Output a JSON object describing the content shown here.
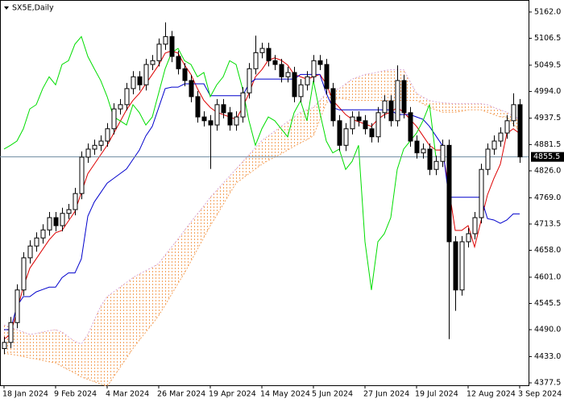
{
  "chart_data": {
    "type": "candlestick",
    "title": "SX5E,Daily",
    "categories": [
      "18 Jan 2024",
      null,
      null,
      null,
      null,
      null,
      null,
      null,
      "9 Feb 2024",
      null,
      null,
      null,
      null,
      null,
      null,
      null,
      "4 Mar 2024",
      null,
      null,
      null,
      null,
      null,
      null,
      null,
      "26 Mar 2024",
      null,
      null,
      null,
      null,
      null,
      null,
      null,
      "19 Apr 2024",
      null,
      null,
      null,
      null,
      null,
      null,
      null,
      "14 May 2024",
      null,
      null,
      null,
      null,
      null,
      null,
      null,
      "5 Jun 2024",
      null,
      null,
      null,
      null,
      null,
      null,
      null,
      "27 Jun 2024",
      null,
      null,
      null,
      null,
      null,
      null,
      null,
      "19 Jul 2024",
      null,
      null,
      null,
      null,
      null,
      null,
      null,
      "12 Aug 2024",
      null,
      null,
      null,
      null,
      null,
      null,
      null,
      "3 Sep 2024"
    ],
    "open": [
      4450,
      4463,
      4505,
      4574,
      4642,
      4667,
      4684,
      4701,
      4727,
      4710,
      4736,
      4744,
      4778,
      4855,
      4872,
      4880,
      4889,
      4915,
      4957,
      4966,
      5000,
      5025,
      5008,
      5051,
      5059,
      5094,
      5110,
      5068,
      5042,
      5017,
      4983,
      4940,
      4932,
      4923,
      4966,
      4949,
      4923,
      4940,
      4991,
      5042,
      5076,
      5085,
      5059,
      5051,
      5025,
      5034,
      4983,
      5008,
      5025,
      5059,
      5051,
      5000,
      4932,
      4880,
      4915,
      4940,
      4932,
      4915,
      4898,
      4949,
      4974,
      4932,
      5017,
      4949,
      4889,
      4864,
      4872,
      4829,
      4846,
      4880,
      4676,
      4574,
      4676,
      4693,
      4727,
      4829,
      4872,
      4889,
      4906,
      4932,
      4966
    ],
    "high": [
      4475,
      4517,
      4586,
      4654,
      4679,
      4696,
      4713,
      4739,
      4739,
      4748,
      4756,
      4790,
      4867,
      4884,
      4892,
      4901,
      4927,
      4969,
      4978,
      5012,
      5037,
      5037,
      5063,
      5071,
      5106,
      5140,
      5122,
      5080,
      5054,
      5029,
      4995,
      4952,
      4944,
      4978,
      4978,
      4961,
      4952,
      5003,
      5054,
      5112,
      5097,
      5097,
      5071,
      5063,
      5046,
      5046,
      5020,
      5037,
      5071,
      5071,
      5063,
      5012,
      4944,
      4927,
      4952,
      4952,
      4944,
      4927,
      4961,
      4986,
      4986,
      5049,
      5029,
      4961,
      4901,
      4884,
      4884,
      4858,
      4892,
      4892,
      4688,
      4688,
      4705,
      4739,
      4841,
      4884,
      4901,
      4918,
      4944,
      4990,
      4978
    ],
    "low": [
      4438,
      4451,
      4493,
      4562,
      4630,
      4655,
      4672,
      4689,
      4698,
      4698,
      4724,
      4732,
      4766,
      4843,
      4860,
      4868,
      4877,
      4903,
      4945,
      4954,
      4988,
      4996,
      4996,
      5039,
      5047,
      5082,
      5056,
      5030,
      5005,
      4971,
      4928,
      4920,
      4830,
      4911,
      4937,
      4911,
      4911,
      4928,
      4979,
      5030,
      5064,
      5047,
      5039,
      5013,
      5013,
      4971,
      4971,
      4996,
      5013,
      5039,
      4988,
      4920,
      4868,
      4868,
      4903,
      4920,
      4903,
      4886,
      4886,
      4937,
      4920,
      4920,
      4937,
      4877,
      4852,
      4852,
      4817,
      4817,
      4834,
      4470,
      4530,
      4562,
      4664,
      4681,
      4715,
      4817,
      4860,
      4877,
      4894,
      4920,
      4843
    ],
    "close": [
      4463,
      4505,
      4574,
      4642,
      4667,
      4684,
      4701,
      4727,
      4710,
      4736,
      4744,
      4778,
      4855,
      4872,
      4880,
      4889,
      4915,
      4957,
      4966,
      5000,
      5025,
      5008,
      5051,
      5059,
      5094,
      5110,
      5068,
      5042,
      5017,
      4983,
      4940,
      4932,
      4923,
      4966,
      4949,
      4923,
      4940,
      4991,
      5042,
      5076,
      5085,
      5059,
      5051,
      5025,
      5034,
      4983,
      5008,
      5025,
      5059,
      5051,
      5000,
      4932,
      4880,
      4915,
      4940,
      4932,
      4915,
      4898,
      4949,
      4974,
      4932,
      5017,
      4949,
      4889,
      4864,
      4872,
      4829,
      4846,
      4880,
      4676,
      4574,
      4676,
      4693,
      4727,
      4829,
      4872,
      4889,
      4906,
      4932,
      4966,
      4855.5
    ],
    "bull_color": "#ffffff",
    "bear_color": "#000000",
    "lines": [
      {
        "color": "#dd0000",
        "values": [
          4470,
          4480,
          4530,
          4580,
          4620,
          4640,
          4660,
          4680,
          4695,
          4700,
          4720,
          4740,
          4780,
          4820,
          4840,
          4860,
          4880,
          4905,
          4930,
          4955,
          4975,
          4990,
          5010,
          5030,
          5050,
          5075,
          5080,
          5075,
          5050,
          5030,
          5000,
          4975,
          4960,
          4950,
          4945,
          4940,
          4935,
          4960,
          4990,
          5025,
          5040,
          5060,
          5065,
          5060,
          5050,
          5030,
          5025,
          5020,
          5025,
          5030,
          5010,
          4975,
          4960,
          4945,
          4935,
          4930,
          4925,
          4920,
          4935,
          4945,
          4950,
          4960,
          4950,
          4935,
          4920,
          4900,
          4880,
          4870,
          4870,
          4790,
          4700,
          4700,
          4710,
          4665,
          4720,
          4775,
          4810,
          4840,
          4905,
          4915,
          4905
        ]
      },
      {
        "color": "#0000cc",
        "values": [
          4490,
          4490,
          4540,
          4560,
          4560,
          4570,
          4575,
          4580,
          4580,
          4600,
          4610,
          4610,
          4640,
          4730,
          4760,
          4780,
          4800,
          4810,
          4820,
          4830,
          4850,
          4870,
          4900,
          4920,
          4960,
          5000,
          5003,
          5003,
          5010,
          5010,
          5010,
          5010,
          4985,
          4985,
          4985,
          4985,
          4985,
          4985,
          5010,
          5020,
          5020,
          5020,
          5020,
          5020,
          5020,
          5020,
          5030,
          5030,
          5030,
          5030,
          4990,
          4960,
          4955,
          4955,
          4955,
          4955,
          4955,
          4955,
          4955,
          4955,
          4955,
          4945,
          4945,
          4945,
          4940,
          4935,
          4920,
          4900,
          4880,
          4770,
          4770,
          4770,
          4770,
          4770,
          4770,
          4725,
          4722,
          4715,
          4722,
          4735,
          4735
        ]
      },
      {
        "color": "#00dd00",
        "values": [
          4872,
          4880,
          4889,
          4915,
          4957,
          4966,
          5000,
          5025,
          5008,
          5051,
          5059,
          5094,
          5110,
          5068,
          5042,
          5017,
          4983,
          4940,
          4932,
          4923,
          4966,
          4949,
          4923,
          4940,
          4991,
          5042,
          5076,
          5085,
          5059,
          5051,
          5025,
          5034,
          4983,
          5008,
          5025,
          5059,
          5051,
          5000,
          4932,
          4880,
          4915,
          4940,
          4932,
          4915,
          4898,
          4949,
          4974,
          4932,
          5017,
          4949,
          4889,
          4864,
          4872,
          4829,
          4846,
          4880,
          4676,
          4574,
          4676,
          4693,
          4727,
          4829,
          4872,
          4889,
          4906,
          4932,
          4966,
          4855.5,
          null,
          null,
          null,
          null,
          null,
          null,
          null,
          null,
          null,
          null,
          null,
          null,
          null
        ]
      }
    ],
    "cloud": {
      "color": "#f4a460",
      "span_a_color": "#f4a460",
      "span_b_color": "#d8a8d8",
      "span_a": [
        4440,
        4438,
        4436,
        4433,
        4430,
        4428,
        4425,
        4422,
        4420,
        4412,
        4405,
        4398,
        4390,
        4385,
        4380,
        4375,
        4370,
        4390,
        4410,
        4430,
        4450,
        4468,
        4485,
        4502,
        4520,
        4542,
        4565,
        4588,
        4610,
        4635,
        4660,
        4685,
        4710,
        4732,
        4755,
        4778,
        4800,
        4810,
        4820,
        4830,
        4840,
        4848,
        4855,
        4862,
        4870,
        4878,
        4885,
        4892,
        4900,
        4935,
        4970,
        4975,
        4980,
        4978,
        4975,
        4975,
        4975,
        4975,
        4975,
        4975,
        4975,
        4975,
        4975,
        4975,
        4975,
        4968,
        4960,
        4955,
        4950,
        4950,
        4950,
        4952,
        4955,
        4955,
        4955,
        4950,
        4945,
        4940,
        4940,
        4925,
        4910
      ],
      "span_b": [
        4500,
        4495,
        4490,
        4485,
        4480,
        4482,
        4485,
        4488,
        4490,
        4485,
        4475,
        4465,
        4460,
        4480,
        4510,
        4540,
        4560,
        4570,
        4580,
        4590,
        4600,
        4608,
        4615,
        4622,
        4630,
        4648,
        4665,
        4682,
        4700,
        4718,
        4735,
        4752,
        4770,
        4785,
        4800,
        4815,
        4830,
        4845,
        4860,
        4875,
        4890,
        4900,
        4910,
        4920,
        4930,
        4940,
        4950,
        4955,
        4960,
        4975,
        4990,
        4995,
        5000,
        5010,
        5020,
        5025,
        5030,
        5032,
        5035,
        5038,
        5040,
        5040,
        5040,
        5015,
        4990,
        4982,
        4975,
        4972,
        4970,
        4969,
        4968,
        4968,
        4968,
        4968,
        4968,
        4966,
        4960,
        4955,
        4950,
        4942,
        4935
      ]
    },
    "price_line_color": "#6e8ca0",
    "ylim": [
      4372.4,
      5184
    ],
    "yticks": [
      {
        "value": 5162,
        "label": "5162.0"
      },
      5106.5,
      5049.5,
      {
        "value": 4994,
        "label": "4994.0"
      },
      4937.5,
      4881.5,
      {
        "value": 4826,
        "label": "4826.0"
      },
      {
        "value": 4769,
        "label": "4769.0"
      },
      4713.5,
      {
        "value": 4658,
        "label": "4658.0"
      },
      {
        "value": 4601,
        "label": "4601.0"
      },
      4545.5,
      {
        "value": 4490,
        "label": "4490.0"
      },
      {
        "value": 4433,
        "label": "4433.0"
      },
      4377.5
    ]
  }
}
